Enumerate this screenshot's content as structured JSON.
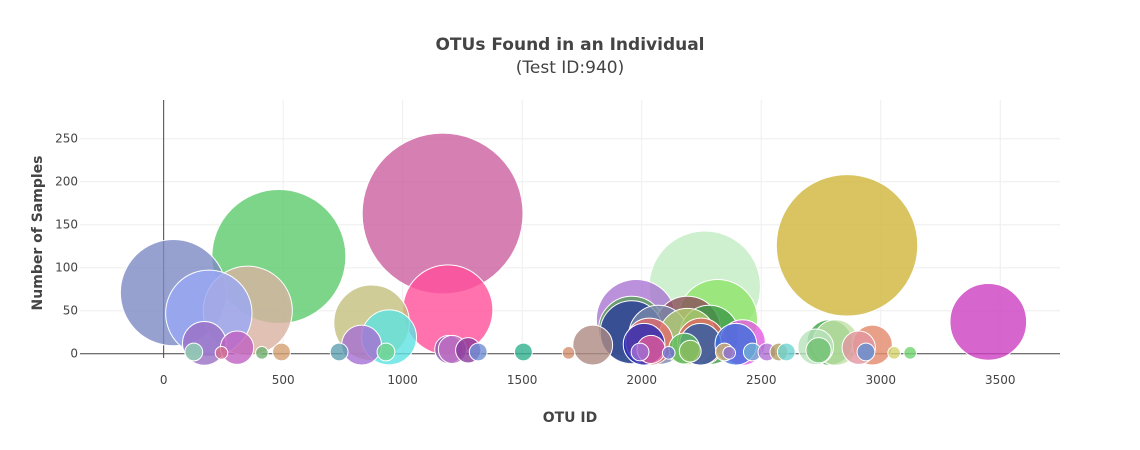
{
  "chart_data": {
    "type": "scatter",
    "title": "OTUs Found in an Individual",
    "subtitle": "(Test ID:940)",
    "xlabel": "OTU ID",
    "ylabel": "Number of Samples",
    "xlim": [
      -350,
      3750
    ],
    "ylim": [
      -5,
      295
    ],
    "x_ticks": [
      0,
      500,
      1000,
      1500,
      2000,
      2500,
      3000,
      3500
    ],
    "y_ticks": [
      0,
      50,
      100,
      150,
      200,
      250
    ],
    "x_tick_labels": [
      "0",
      "500",
      "1000",
      "1500",
      "2000",
      "2500",
      "3000",
      "3500"
    ],
    "y_tick_labels": [
      "0",
      "50",
      "100",
      "150",
      "200",
      "250"
    ],
    "grid": true,
    "series": [
      {
        "points": [
          {
            "x": 1167,
            "y": 163,
            "color": "#cc5f9f"
          },
          {
            "x": 2859,
            "y": 126,
            "color": "#cfb53a"
          },
          {
            "x": 482,
            "y": 113,
            "color": "#5bcb6c"
          },
          {
            "x": 2264,
            "y": 78,
            "color": "#c2ecc2"
          },
          {
            "x": 41,
            "y": 71,
            "color": "#7c8ac4"
          },
          {
            "x": 1189,
            "y": 51,
            "color": "#ff4f9a"
          },
          {
            "x": 352,
            "y": 50,
            "color": "#d9b1a1"
          },
          {
            "x": 189,
            "y": 47,
            "color": "#99a8f5"
          },
          {
            "x": 1977,
            "y": 40,
            "color": "#aa76d3"
          },
          {
            "x": 2318,
            "y": 40,
            "color": "#8ee56a"
          },
          {
            "x": 3450,
            "y": 37,
            "color": "#cc3fc0"
          },
          {
            "x": 870,
            "y": 36,
            "color": "#c4bf7e"
          },
          {
            "x": 1959,
            "y": 28,
            "color": "#5a9f5a"
          },
          {
            "x": 2191,
            "y": 28,
            "color": "#8b4f5a"
          },
          {
            "x": 1958,
            "y": 25,
            "color": "#2c3c9c"
          },
          {
            "x": 2070,
            "y": 22,
            "color": "#7b89aa"
          },
          {
            "x": 2283,
            "y": 22,
            "color": "#3c9a46"
          },
          {
            "x": 2191,
            "y": 20,
            "color": "#b1cc6f"
          },
          {
            "x": 943,
            "y": 19,
            "color": "#5ee2e2"
          },
          {
            "x": 2032,
            "y": 14,
            "color": "#e26a6a"
          },
          {
            "x": 2249,
            "y": 14,
            "color": "#e0655f"
          },
          {
            "x": 2422,
            "y": 13,
            "color": "#e25ae2"
          },
          {
            "x": 2786,
            "y": 13,
            "color": "#3fa346"
          },
          {
            "x": 2812,
            "y": 13,
            "color": "#c0e0a6"
          },
          {
            "x": 170,
            "y": 12,
            "color": "#9a6fc4"
          },
          {
            "x": 2010,
            "y": 11,
            "color": "#2a2ab6"
          },
          {
            "x": 2246,
            "y": 11,
            "color": "#2a5ca8"
          },
          {
            "x": 2394,
            "y": 11,
            "color": "#3f6fe0"
          },
          {
            "x": 1795,
            "y": 10,
            "color": "#ae8a82"
          },
          {
            "x": 2965,
            "y": 10,
            "color": "#e2886a"
          },
          {
            "x": 828,
            "y": 10,
            "color": "#a66fd3"
          },
          {
            "x": 2728,
            "y": 8,
            "color": "#b7e2ba"
          },
          {
            "x": 2908,
            "y": 7,
            "color": "#e296a0"
          },
          {
            "x": 307,
            "y": 7,
            "color": "#c060c0"
          },
          {
            "x": 2178,
            "y": 6,
            "color": "#5fbf5f"
          },
          {
            "x": 2039,
            "y": 5,
            "color": "#e25a9a"
          },
          {
            "x": 1193,
            "y": 5,
            "color": "#8a5ab0"
          },
          {
            "x": 1208,
            "y": 5,
            "color": "#c06fc4"
          },
          {
            "x": 1274,
            "y": 4,
            "color": "#8a3a9a"
          },
          {
            "x": 2740,
            "y": 4,
            "color": "#6fbf6f"
          },
          {
            "x": 2203,
            "y": 3,
            "color": "#8fbf5f"
          },
          {
            "x": 1316,
            "y": 2,
            "color": "#6f8fd3"
          },
          {
            "x": 1505,
            "y": 2,
            "color": "#2fb08f"
          },
          {
            "x": 2463,
            "y": 2,
            "color": "#6fb0d3"
          },
          {
            "x": 2524,
            "y": 2,
            "color": "#b06fd3"
          },
          {
            "x": 2346,
            "y": 2,
            "color": "#d3b06f"
          },
          {
            "x": 930,
            "y": 2,
            "color": "#6fd38f"
          },
          {
            "x": 734,
            "y": 2,
            "color": "#5fa0b0"
          },
          {
            "x": 2574,
            "y": 2,
            "color": "#b0a05f"
          },
          {
            "x": 2938,
            "y": 2,
            "color": "#5f8fd3"
          },
          {
            "x": 126,
            "y": 2,
            "color": "#8fd3b0"
          },
          {
            "x": 493,
            "y": 2,
            "color": "#d3a06f"
          },
          {
            "x": 1993,
            "y": 2,
            "color": "#a06fd3"
          },
          {
            "x": 2605,
            "y": 2,
            "color": "#6fd3d3"
          },
          {
            "x": 2366,
            "y": 1,
            "color": "#8f6fd3"
          },
          {
            "x": 242,
            "y": 1,
            "color": "#d36f8f"
          },
          {
            "x": 411,
            "y": 1,
            "color": "#6fb06f"
          },
          {
            "x": 1694,
            "y": 1,
            "color": "#d38f6f"
          },
          {
            "x": 2113,
            "y": 1,
            "color": "#6f6fd3"
          },
          {
            "x": 3056,
            "y": 1,
            "color": "#d3d36f"
          },
          {
            "x": 3123,
            "y": 1,
            "color": "#6fd36f"
          }
        ]
      }
    ],
    "colors": {
      "axis": "#444444",
      "grid": "#eeeeee",
      "text": "#444444"
    }
  }
}
